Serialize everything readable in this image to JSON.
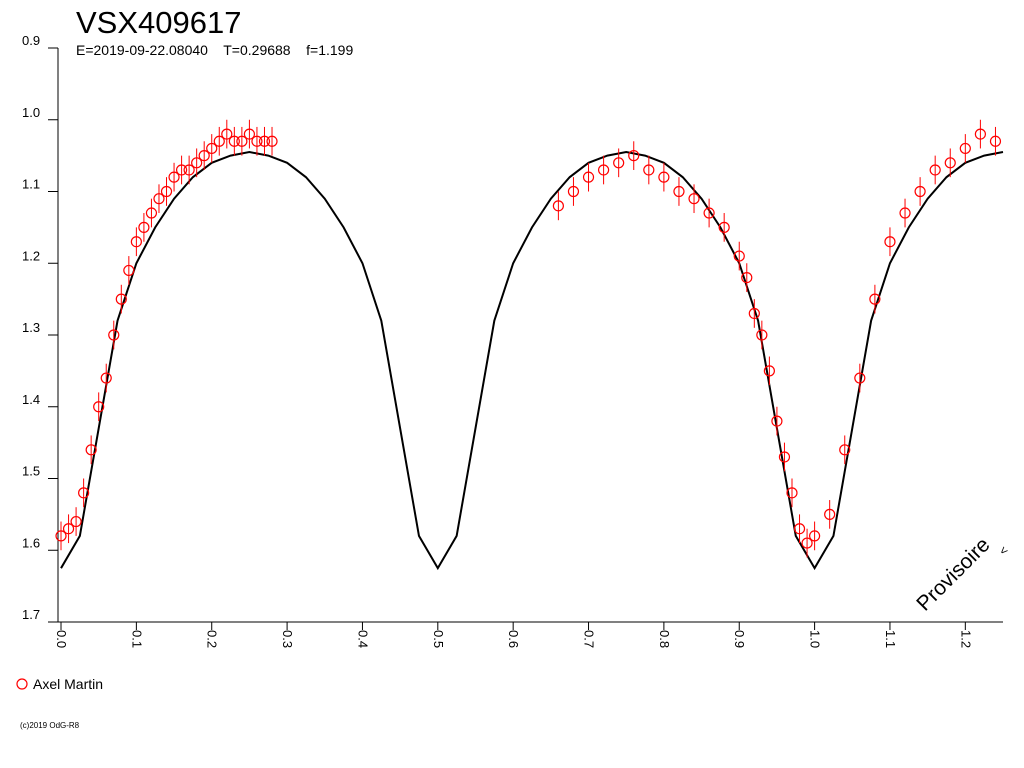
{
  "chart_data": {
    "type": "scatter",
    "title": "VSX409617",
    "subtitle": "E=2019-09-22.08040    T=0.29688    f=1.199",
    "annotation": "Provisoire",
    "annotation_mark": "<",
    "footer": "(c)2019 OdG-R8",
    "xlim": [
      -0.004,
      1.25
    ],
    "ylim": [
      0.9,
      1.7
    ],
    "y_inverted": true,
    "xticks": [
      {
        "value": 0,
        "label": "0.0"
      },
      0.1,
      0.2,
      0.3,
      0.4,
      0.5,
      0.6,
      0.7,
      0.8,
      0.9,
      {
        "value": 1,
        "label": "1.0"
      },
      1.1,
      1.2
    ],
    "yticks": [
      0.9,
      {
        "value": 1,
        "label": "1.0"
      },
      1.1,
      1.2,
      1.3,
      1.4,
      1.5,
      1.6,
      1.7
    ],
    "series": [
      {
        "name": "Axel Martin",
        "color": "#ff0000",
        "marker": "circle",
        "x": [
          0.0,
          0.01,
          0.02,
          0.03,
          0.04,
          0.05,
          0.06,
          0.07,
          0.08,
          0.09,
          0.1,
          0.11,
          0.12,
          0.13,
          0.14,
          0.15,
          0.16,
          0.17,
          0.18,
          0.19,
          0.2,
          0.21,
          0.22,
          0.23,
          0.24,
          0.25,
          0.26,
          0.27,
          0.28,
          0.66,
          0.68,
          0.7,
          0.72,
          0.74,
          0.76,
          0.78,
          0.8,
          0.82,
          0.84,
          0.86,
          0.88,
          0.9,
          0.91,
          0.92,
          0.93,
          0.94,
          0.95,
          0.96,
          0.97,
          0.98,
          0.99,
          1.0,
          1.02,
          1.04,
          1.06,
          1.08,
          1.1,
          1.12,
          1.14,
          1.16,
          1.18,
          1.2,
          1.22,
          1.24
        ],
        "values": [
          1.58,
          1.57,
          1.56,
          1.52,
          1.46,
          1.4,
          1.36,
          1.3,
          1.25,
          1.21,
          1.17,
          1.15,
          1.13,
          1.11,
          1.1,
          1.08,
          1.07,
          1.07,
          1.06,
          1.05,
          1.04,
          1.03,
          1.02,
          1.03,
          1.03,
          1.02,
          1.03,
          1.03,
          1.03,
          1.12,
          1.1,
          1.08,
          1.07,
          1.06,
          1.05,
          1.07,
          1.08,
          1.1,
          1.11,
          1.13,
          1.15,
          1.19,
          1.22,
          1.27,
          1.3,
          1.35,
          1.42,
          1.47,
          1.52,
          1.57,
          1.59,
          1.58,
          1.55,
          1.46,
          1.36,
          1.25,
          1.17,
          1.13,
          1.1,
          1.07,
          1.06,
          1.04,
          1.02,
          1.03
        ],
        "errors": [
          0.02,
          0.02,
          0.02,
          0.02,
          0.02,
          0.02,
          0.02,
          0.02,
          0.02,
          0.02,
          0.02,
          0.02,
          0.02,
          0.02,
          0.02,
          0.02,
          0.02,
          0.02,
          0.02,
          0.02,
          0.02,
          0.02,
          0.02,
          0.02,
          0.02,
          0.02,
          0.02,
          0.02,
          0.02,
          0.02,
          0.02,
          0.02,
          0.02,
          0.02,
          0.02,
          0.02,
          0.02,
          0.02,
          0.02,
          0.02,
          0.02,
          0.02,
          0.02,
          0.02,
          0.02,
          0.02,
          0.02,
          0.02,
          0.02,
          0.02,
          0.02,
          0.02,
          0.02,
          0.02,
          0.02,
          0.02,
          0.02,
          0.02,
          0.02,
          0.02,
          0.02,
          0.02,
          0.02,
          0.02
        ]
      },
      {
        "color": "#000000",
        "marker": "line",
        "x": [
          0,
          0.025,
          0.05,
          0.075,
          0.1,
          0.125,
          0.15,
          0.175,
          0.2,
          0.225,
          0.25,
          0.275,
          0.3,
          0.325,
          0.35,
          0.375,
          0.4,
          0.425,
          0.45,
          0.475,
          0.5,
          0.525,
          0.55,
          0.575,
          0.6,
          0.625,
          0.65,
          0.675,
          0.7,
          0.725,
          0.75,
          0.775,
          0.8,
          0.825,
          0.85,
          0.875,
          0.9,
          0.925,
          0.95,
          0.975,
          1,
          1.025,
          1.05,
          1.075,
          1.1,
          1.125,
          1.15,
          1.175,
          1.2,
          1.225,
          1.25
        ],
        "values": [
          1.625,
          1.58,
          1.43,
          1.28,
          1.2,
          1.15,
          1.11,
          1.08,
          1.06,
          1.05,
          1.045,
          1.05,
          1.06,
          1.08,
          1.11,
          1.15,
          1.2,
          1.28,
          1.43,
          1.58,
          1.625,
          1.58,
          1.43,
          1.28,
          1.2,
          1.15,
          1.11,
          1.08,
          1.06,
          1.05,
          1.045,
          1.05,
          1.06,
          1.08,
          1.11,
          1.15,
          1.2,
          1.28,
          1.43,
          1.58,
          1.625,
          1.58,
          1.43,
          1.28,
          1.2,
          1.15,
          1.11,
          1.08,
          1.06,
          1.05,
          1.045
        ]
      }
    ]
  }
}
